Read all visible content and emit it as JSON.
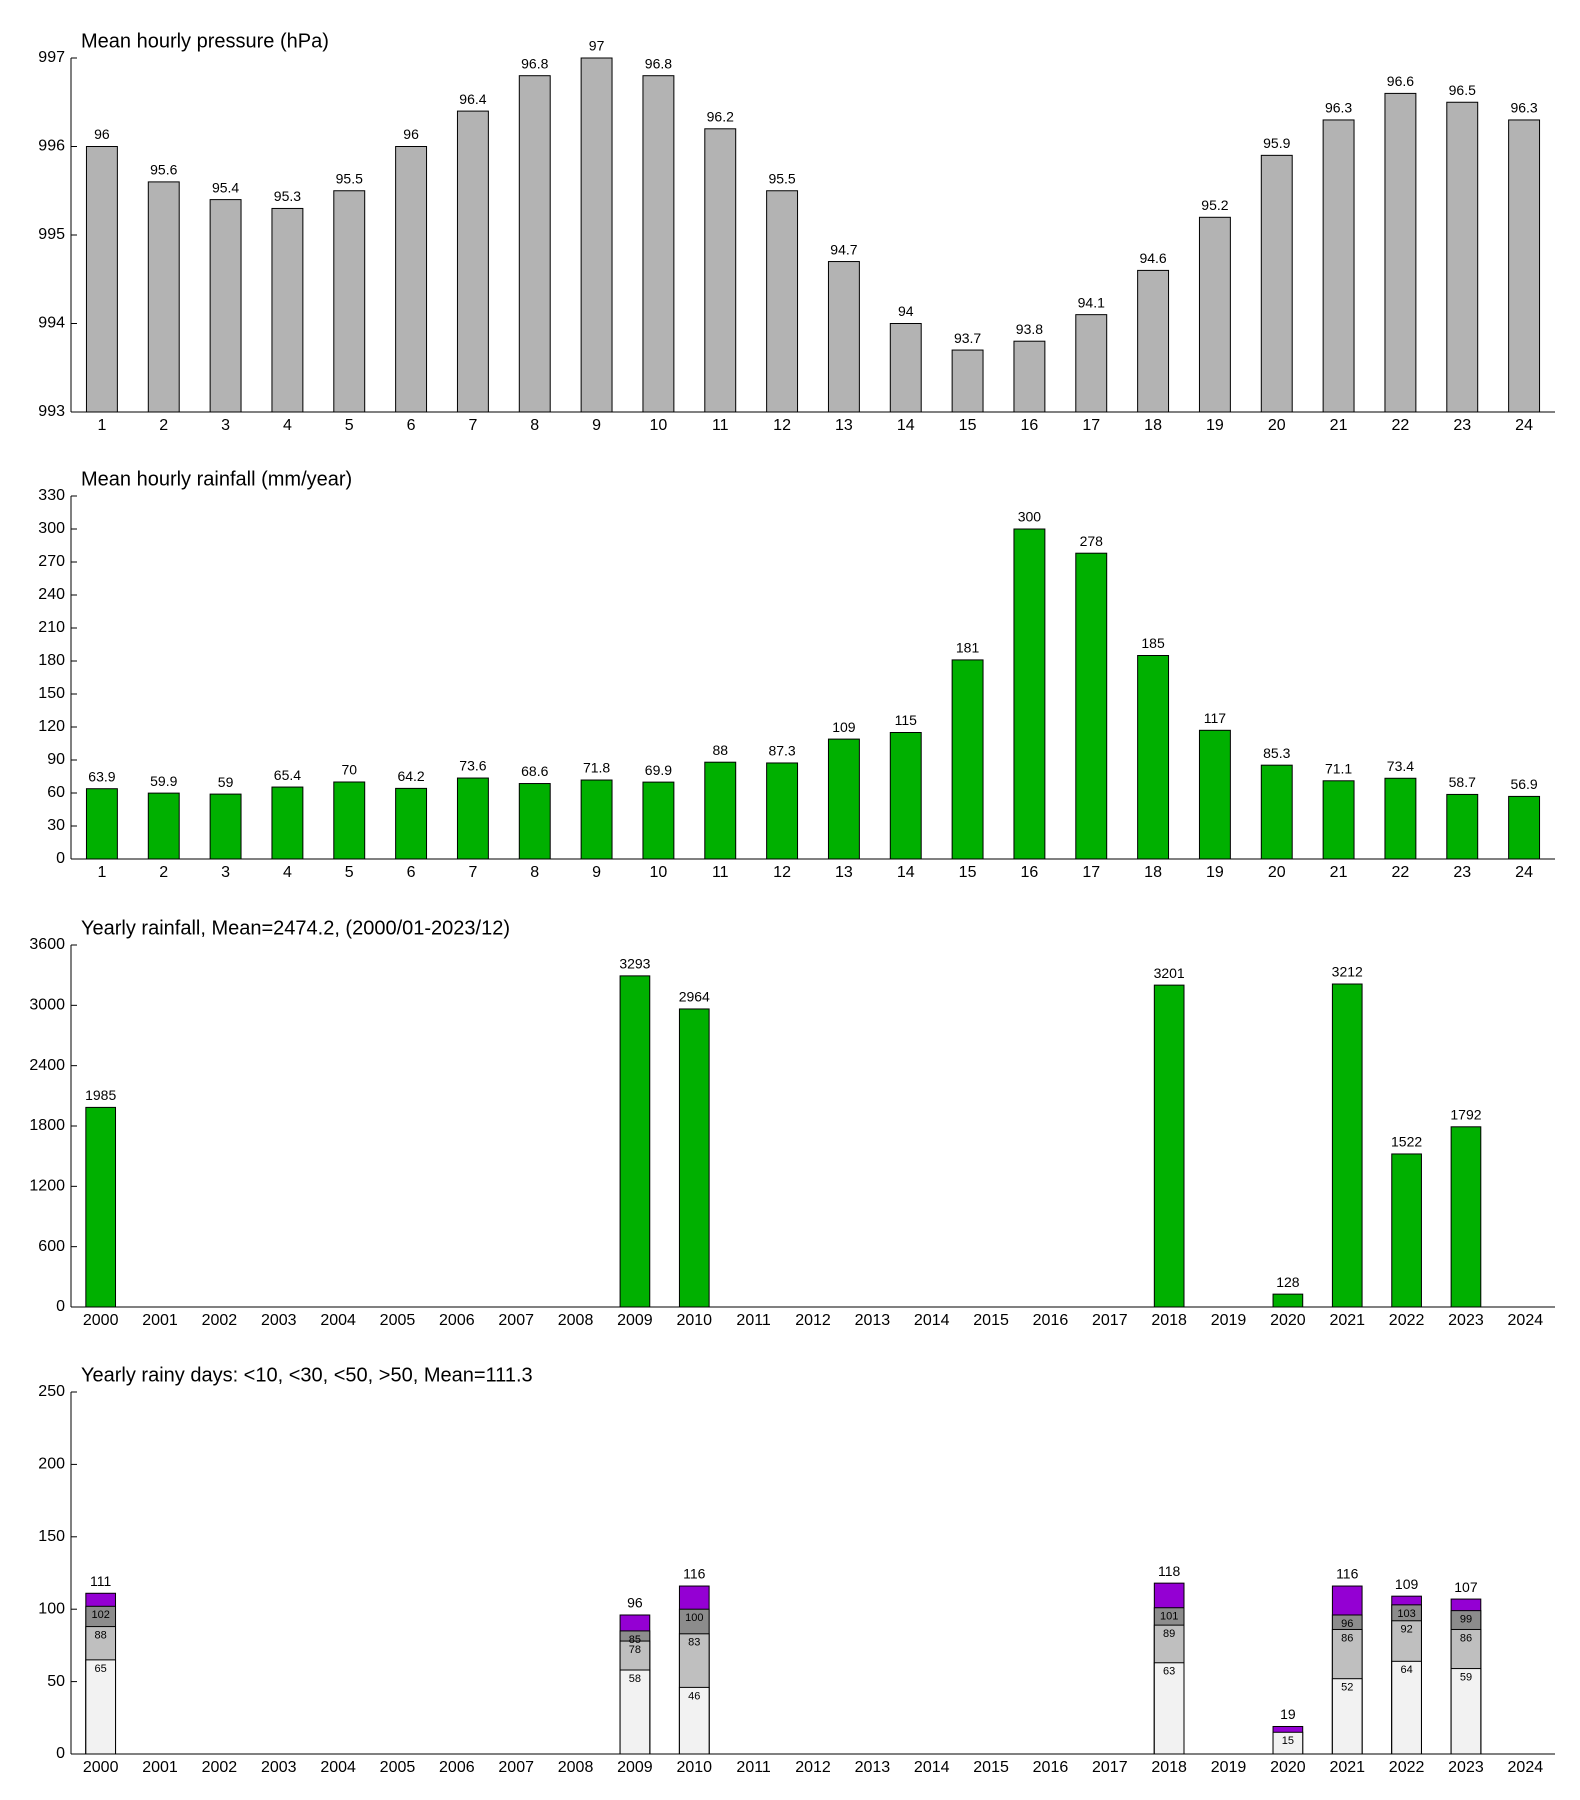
{
  "chart_data": [
    {
      "type": "bar",
      "title": "Mean hourly pressure (hPa)",
      "categories": [
        "1",
        "2",
        "3",
        "4",
        "5",
        "6",
        "7",
        "8",
        "9",
        "10",
        "11",
        "12",
        "13",
        "14",
        "15",
        "16",
        "17",
        "18",
        "19",
        "20",
        "21",
        "22",
        "23",
        "24"
      ],
      "values": [
        996.0,
        995.6,
        995.4,
        995.3,
        995.5,
        996.0,
        996.4,
        996.8,
        997.0,
        996.8,
        996.2,
        995.5,
        994.7,
        994.0,
        993.7,
        993.8,
        994.1,
        994.6,
        995.2,
        995.9,
        996.3,
        996.6,
        996.5,
        996.3
      ],
      "value_labels": [
        "96",
        "95.6",
        "95.4",
        "95.3",
        "95.5",
        "96",
        "96.4",
        "96.8",
        "97",
        "96.8",
        "96.2",
        "95.5",
        "94.7",
        "94",
        "93.7",
        "93.8",
        "94.1",
        "94.6",
        "95.2",
        "95.9",
        "96.3",
        "96.6",
        "96.5",
        "96.3"
      ],
      "color": "#b3b3b3",
      "ylim": [
        993,
        997
      ],
      "yticks": [
        993,
        994,
        995,
        996,
        997
      ]
    },
    {
      "type": "bar",
      "title": "Mean hourly rainfall (mm/year)",
      "categories": [
        "1",
        "2",
        "3",
        "4",
        "5",
        "6",
        "7",
        "8",
        "9",
        "10",
        "11",
        "12",
        "13",
        "14",
        "15",
        "16",
        "17",
        "18",
        "19",
        "20",
        "21",
        "22",
        "23",
        "24"
      ],
      "values": [
        63.9,
        59.9,
        59,
        65.4,
        70,
        64.2,
        73.6,
        68.6,
        71.8,
        69.9,
        88,
        87.3,
        109,
        115,
        181,
        300,
        278,
        185,
        117,
        85.3,
        71.1,
        73.4,
        58.7,
        56.9
      ],
      "color": "#00b000",
      "ylim": [
        0,
        330
      ],
      "yticks": [
        0,
        30,
        60,
        90,
        120,
        150,
        180,
        210,
        240,
        270,
        300,
        330
      ]
    },
    {
      "type": "bar",
      "title": "Yearly rainfall, Mean=2474.2, (2000/01-2023/12)",
      "categories": [
        "2000",
        "2001",
        "2002",
        "2003",
        "2004",
        "2005",
        "2006",
        "2007",
        "2008",
        "2009",
        "2010",
        "2011",
        "2012",
        "2013",
        "2014",
        "2015",
        "2016",
        "2017",
        "2018",
        "2019",
        "2020",
        "2021",
        "2022",
        "2023",
        "2024"
      ],
      "values": [
        1985,
        null,
        null,
        null,
        null,
        null,
        null,
        null,
        null,
        3293,
        2964,
        null,
        null,
        null,
        null,
        null,
        null,
        null,
        3201,
        null,
        128,
        3212,
        1522,
        1792,
        null
      ],
      "color": "#00b000",
      "ylim": [
        0,
        3600
      ],
      "yticks": [
        0,
        600,
        1200,
        1800,
        2400,
        3000,
        3600
      ]
    },
    {
      "type": "overlapped_bar",
      "title": "Yearly rainy days: <10, <30, <50, >50, Mean=111.3",
      "categories": [
        "2000",
        "2001",
        "2002",
        "2003",
        "2004",
        "2005",
        "2006",
        "2007",
        "2008",
        "2009",
        "2010",
        "2011",
        "2012",
        "2013",
        "2014",
        "2015",
        "2016",
        "2017",
        "2018",
        "2019",
        "2020",
        "2021",
        "2022",
        "2023",
        "2024"
      ],
      "series": [
        {
          "color": "#f2f2f2",
          "values": [
            65,
            null,
            null,
            null,
            null,
            null,
            null,
            null,
            null,
            58,
            46,
            null,
            null,
            null,
            null,
            null,
            null,
            null,
            63,
            null,
            15,
            52,
            64,
            59,
            null
          ]
        },
        {
          "color": "#bfbfbf",
          "values": [
            88,
            null,
            null,
            null,
            null,
            null,
            null,
            null,
            null,
            78,
            83,
            null,
            null,
            null,
            null,
            null,
            null,
            null,
            89,
            null,
            null,
            86,
            92,
            86,
            null
          ]
        },
        {
          "color": "#8c8c8c",
          "values": [
            102,
            null,
            null,
            null,
            null,
            null,
            null,
            null,
            null,
            85,
            100,
            null,
            null,
            null,
            null,
            null,
            null,
            null,
            101,
            null,
            null,
            96,
            103,
            99,
            null
          ]
        },
        {
          "color": "#9400d3",
          "values": [
            111,
            null,
            null,
            null,
            null,
            null,
            null,
            null,
            null,
            96,
            116,
            null,
            null,
            null,
            null,
            null,
            null,
            null,
            118,
            null,
            19,
            116,
            109,
            107,
            null
          ]
        }
      ],
      "ylim": [
        0,
        250
      ],
      "yticks": [
        0,
        50,
        100,
        150,
        200,
        250
      ]
    }
  ]
}
